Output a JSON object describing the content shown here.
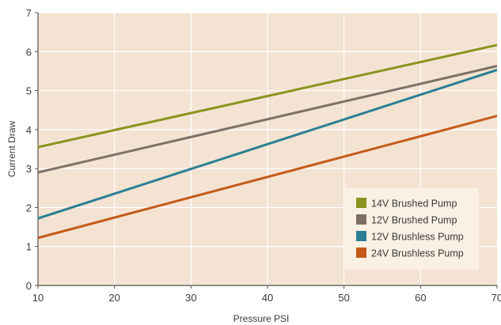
{
  "chart_data": {
    "type": "line",
    "title": "",
    "xlabel": "Pressure PSI",
    "ylabel": "Current Draw",
    "x": [
      10,
      70
    ],
    "xlim": [
      10,
      70
    ],
    "ylim": [
      0,
      7
    ],
    "xticks": [
      10,
      20,
      30,
      40,
      50,
      60,
      70
    ],
    "yticks": [
      0,
      1,
      2,
      3,
      4,
      5,
      6,
      7
    ],
    "grid": true,
    "legend_position": "bottom-right",
    "colors": {
      "plot_background": "#f4e3d2",
      "gridlines": "#ffffff",
      "axes": "#555555",
      "legend_background": "#fbf0e4"
    },
    "series": [
      {
        "name": "14V Brushed Pump",
        "color": "#8a931f",
        "values": [
          3.55,
          6.17
        ]
      },
      {
        "name": "12V Brushed Pump",
        "color": "#7d7167",
        "values": [
          2.9,
          5.63
        ]
      },
      {
        "name": "12V Brushless Pump",
        "color": "#2a7f94",
        "values": [
          1.72,
          5.53
        ]
      },
      {
        "name": "24V Brushless Pump",
        "color": "#c45a1a",
        "values": [
          1.22,
          4.35
        ]
      }
    ]
  }
}
